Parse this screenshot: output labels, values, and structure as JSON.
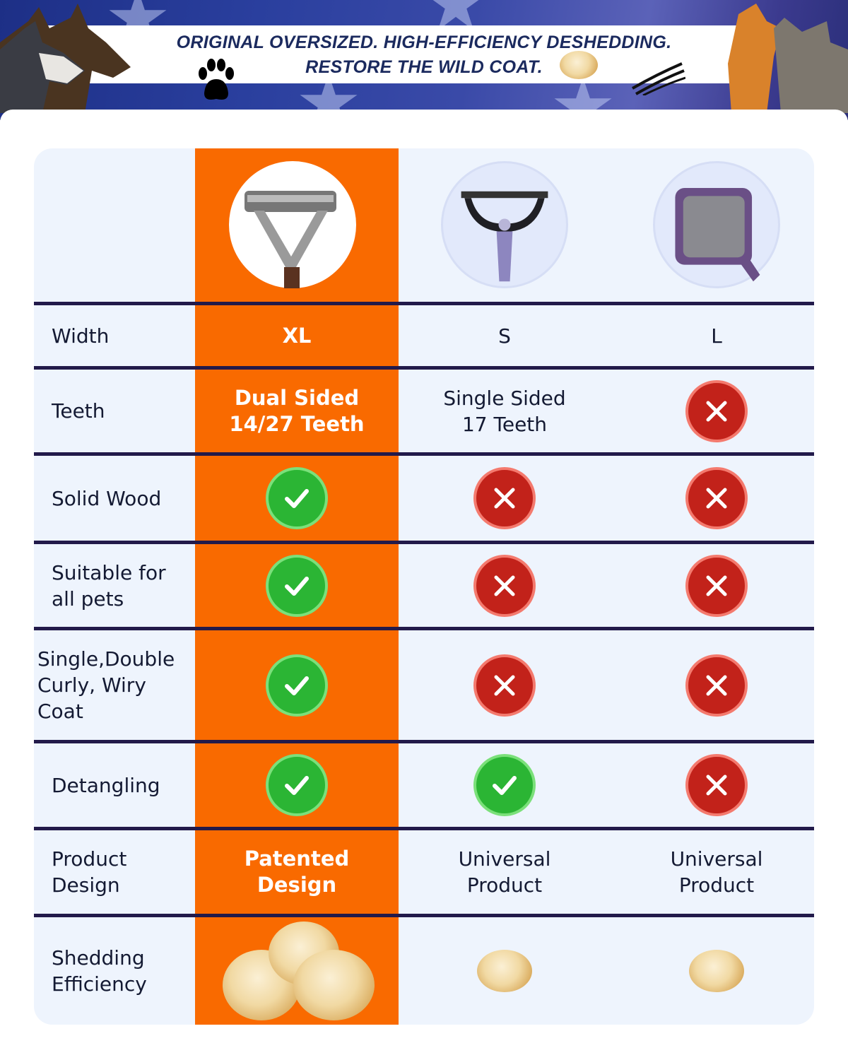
{
  "banner": {
    "line1": "ORIGINAL OVERSIZED. HIGH-EFFICIENCY DESHEDDING.",
    "line2": "RESTORE THE WILD COAT.",
    "icons": [
      "dog-illustration",
      "paw-print-icon",
      "fur-ball-icon",
      "claw-scratch-icon",
      "cat-illustration"
    ]
  },
  "colors": {
    "highlight": "#f96a00",
    "table_bg": "#eef4fd",
    "divider": "#221a4a",
    "check": "#2bb534",
    "cross": "#c2221a",
    "banner": "#2a3f9e"
  },
  "products": [
    {
      "name": "featured-deshedding-rake",
      "image": "dual-sided-rake-wooden-handle"
    },
    {
      "name": "competitor-undercoat-rake",
      "image": "purple-single-sided-rake"
    },
    {
      "name": "competitor-slicker-brush",
      "image": "purple-slicker-brush"
    }
  ],
  "rows": [
    {
      "label": "Width",
      "cells": [
        {
          "type": "text",
          "value": "XL"
        },
        {
          "type": "text",
          "value": "S"
        },
        {
          "type": "text",
          "value": "L"
        }
      ]
    },
    {
      "label": "Teeth",
      "cells": [
        {
          "type": "text",
          "value": "Dual Sided\n14/27 Teeth"
        },
        {
          "type": "text",
          "value": "Single Sided\n17 Teeth"
        },
        {
          "type": "cross"
        }
      ]
    },
    {
      "label": "Solid Wood",
      "cells": [
        {
          "type": "check"
        },
        {
          "type": "cross"
        },
        {
          "type": "cross"
        }
      ]
    },
    {
      "label": "Suitable for\nall pets",
      "cells": [
        {
          "type": "check"
        },
        {
          "type": "cross"
        },
        {
          "type": "cross"
        }
      ]
    },
    {
      "label": "Single,Double\nCurly, Wiry\nCoat",
      "cells": [
        {
          "type": "check"
        },
        {
          "type": "cross"
        },
        {
          "type": "cross"
        }
      ]
    },
    {
      "label": "Detangling",
      "cells": [
        {
          "type": "check"
        },
        {
          "type": "check"
        },
        {
          "type": "cross"
        }
      ]
    },
    {
      "label": "Product\nDesign",
      "cells": [
        {
          "type": "text",
          "value": "Patented\nDesign"
        },
        {
          "type": "text",
          "value": "Universal\nProduct"
        },
        {
          "type": "text",
          "value": "Universal\nProduct"
        }
      ]
    },
    {
      "label": "Shedding\nEfficiency",
      "cells": [
        {
          "type": "fur",
          "level": "high"
        },
        {
          "type": "fur",
          "level": "low"
        },
        {
          "type": "fur",
          "level": "low"
        }
      ]
    }
  ]
}
